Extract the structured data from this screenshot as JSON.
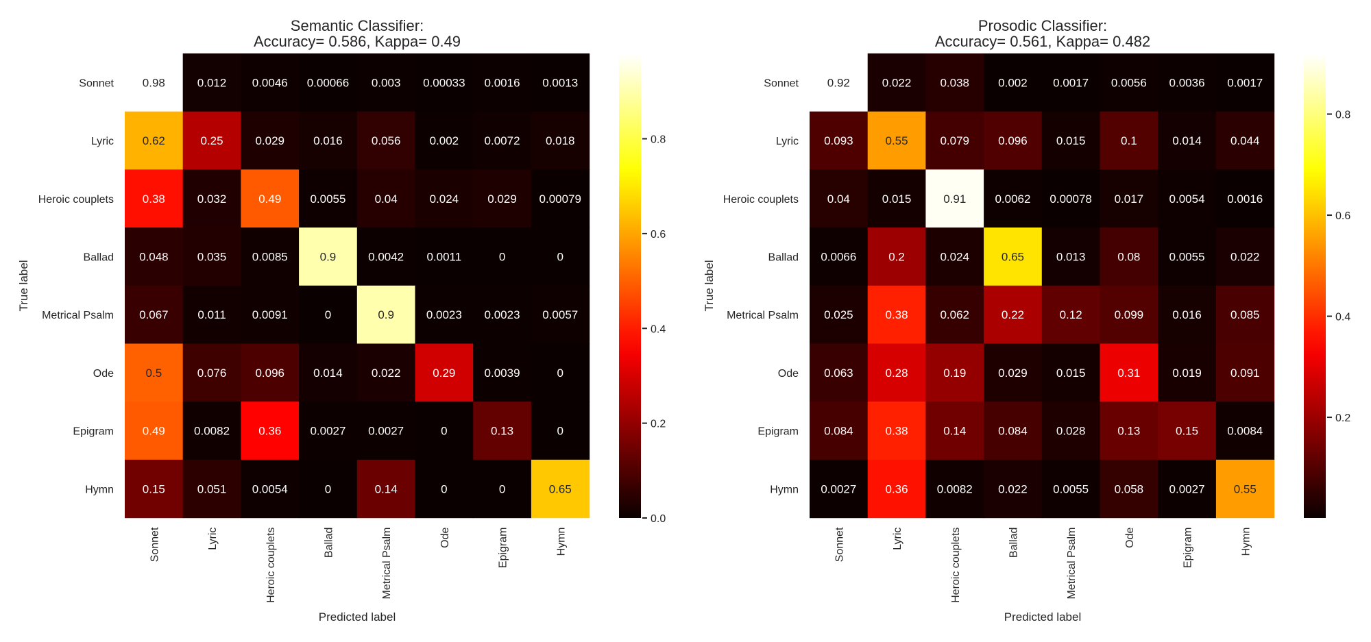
{
  "chart_data": [
    {
      "type": "heatmap",
      "title": "Semantic Classifier:",
      "subtitle": "Accuracy= 0.586, Kappa= 0.49",
      "xlabel": "Predicted label",
      "ylabel": "True label",
      "colormap": "hot",
      "vmin": 0.0,
      "vmax": 0.98,
      "colorbar_ticks": [
        "0.0",
        "0.2",
        "0.4",
        "0.6",
        "0.8"
      ],
      "colorbar_tick_values": [
        0.0,
        0.2,
        0.4,
        0.6,
        0.8
      ],
      "row_labels": [
        "Sonnet",
        "Lyric",
        "Heroic couplets",
        "Ballad",
        "Metrical Psalm",
        "Ode",
        "Epigram",
        "Hymn"
      ],
      "col_labels": [
        "Sonnet",
        "Lyric",
        "Heroic couplets",
        "Ballad",
        "Metrical Psalm",
        "Ode",
        "Epigram",
        "Hymn"
      ],
      "values": [
        [
          "0.98",
          "0.012",
          "0.0046",
          "0.00066",
          "0.003",
          "0.00033",
          "0.0016",
          "0.0013"
        ],
        [
          "0.62",
          "0.25",
          "0.029",
          "0.016",
          "0.056",
          "0.002",
          "0.0072",
          "0.018"
        ],
        [
          "0.38",
          "0.032",
          "0.49",
          "0.0055",
          "0.04",
          "0.024",
          "0.029",
          "0.00079"
        ],
        [
          "0.048",
          "0.035",
          "0.0085",
          "0.9",
          "0.0042",
          "0.0011",
          "0",
          "0"
        ],
        [
          "0.067",
          "0.011",
          "0.0091",
          "0",
          "0.9",
          "0.0023",
          "0.0023",
          "0.0057"
        ],
        [
          "0.5",
          "0.076",
          "0.096",
          "0.014",
          "0.022",
          "0.29",
          "0.0039",
          "0"
        ],
        [
          "0.49",
          "0.0082",
          "0.36",
          "0.0027",
          "0.0027",
          "0",
          "0.13",
          "0"
        ],
        [
          "0.15",
          "0.051",
          "0.0054",
          "0",
          "0.14",
          "0",
          "0",
          "0.65"
        ]
      ]
    },
    {
      "type": "heatmap",
      "title": "Prosodic Classifier:",
      "subtitle": "Accuracy= 0.561, Kappa= 0.482",
      "xlabel": "Predicted label",
      "ylabel": "True label",
      "colormap": "hot",
      "vmin": 0.00078,
      "vmax": 0.92,
      "colorbar_ticks": [
        "0.2",
        "0.4",
        "0.6",
        "0.8"
      ],
      "colorbar_tick_values": [
        0.2,
        0.4,
        0.6,
        0.8
      ],
      "row_labels": [
        "Sonnet",
        "Lyric",
        "Heroic couplets",
        "Ballad",
        "Metrical Psalm",
        "Ode",
        "Epigram",
        "Hymn"
      ],
      "col_labels": [
        "Sonnet",
        "Lyric",
        "Heroic couplets",
        "Ballad",
        "Metrical Psalm",
        "Ode",
        "Epigram",
        "Hymn"
      ],
      "values": [
        [
          "0.92",
          "0.022",
          "0.038",
          "0.002",
          "0.0017",
          "0.0056",
          "0.0036",
          "0.0017"
        ],
        [
          "0.093",
          "0.55",
          "0.079",
          "0.096",
          "0.015",
          "0.1",
          "0.014",
          "0.044"
        ],
        [
          "0.04",
          "0.015",
          "0.91",
          "0.0062",
          "0.00078",
          "0.017",
          "0.0054",
          "0.0016"
        ],
        [
          "0.0066",
          "0.2",
          "0.024",
          "0.65",
          "0.013",
          "0.08",
          "0.0055",
          "0.022"
        ],
        [
          "0.025",
          "0.38",
          "0.062",
          "0.22",
          "0.12",
          "0.099",
          "0.016",
          "0.085"
        ],
        [
          "0.063",
          "0.28",
          "0.19",
          "0.029",
          "0.015",
          "0.31",
          "0.019",
          "0.091"
        ],
        [
          "0.084",
          "0.38",
          "0.14",
          "0.084",
          "0.028",
          "0.13",
          "0.15",
          "0.0084"
        ],
        [
          "0.0027",
          "0.36",
          "0.0082",
          "0.022",
          "0.0055",
          "0.058",
          "0.0027",
          "0.55"
        ]
      ]
    }
  ]
}
